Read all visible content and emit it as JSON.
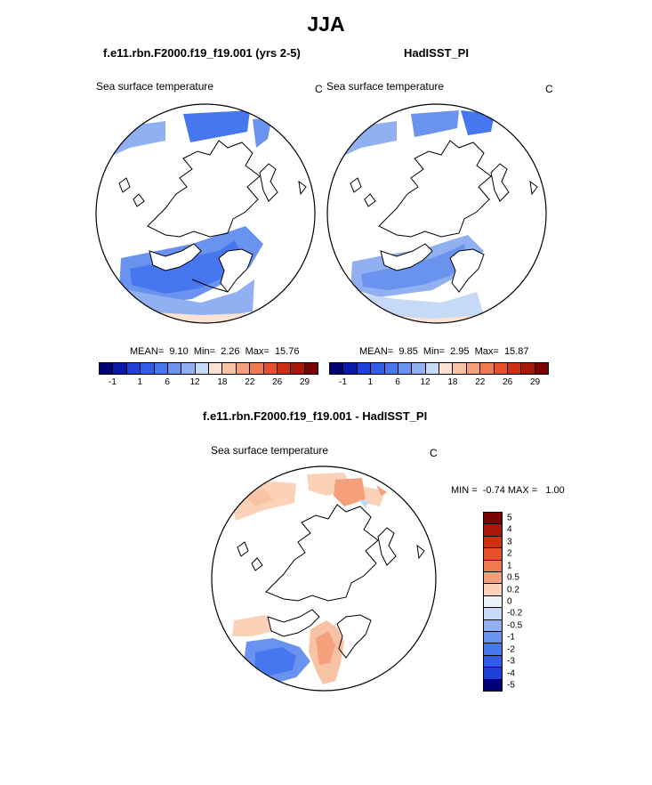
{
  "page": {
    "title": "JJA",
    "left_title": "f.e11.rbn.F2000.f19_f19.001 (yrs 2-5)",
    "right_title": "HadISST_PI",
    "diff_title": "f.e11.rbn.F2000.f19_f19.001 - HadISST_PI"
  },
  "panels": [
    {
      "label": "Sea surface temperature",
      "unit": "C",
      "stats": "MEAN=  9.10  Min=  2.26  Max=  15.76"
    },
    {
      "label": "Sea surface temperature",
      "unit": "C",
      "stats": "MEAN=  9.85  Min=  2.95  Max=  15.87"
    },
    {
      "label": "Sea surface temperature",
      "unit": "C",
      "stats": "MIN =  -0.74 MAX =   1.00"
    }
  ],
  "colorbar_main": {
    "colors": [
      "#000075",
      "#0a1aa8",
      "#1f3fd6",
      "#2f5de8",
      "#4677ee",
      "#6a93f0",
      "#90b0f2",
      "#c6d9f6",
      "#fbe2d2",
      "#f8c3a4",
      "#f5a07a",
      "#f07a50",
      "#e6502a",
      "#cc3010",
      "#a81808",
      "#7a0404"
    ],
    "ticks": [
      "-1",
      "1",
      "6",
      "12",
      "18",
      "22",
      "26",
      "29"
    ]
  },
  "colorbar_diff": {
    "colors": [
      "#7a0404",
      "#a81808",
      "#cc3010",
      "#e6502a",
      "#f07a50",
      "#f5a07a",
      "#fbd2b8",
      "#eaf2fa",
      "#c6d9f6",
      "#90b0f2",
      "#6a93f0",
      "#4677ee",
      "#2f5de8",
      "#1f3fd6",
      "#000075"
    ],
    "ticks": [
      "5",
      "4",
      "3",
      "2",
      "1",
      "0.5",
      "0.2",
      "0",
      "-0.2",
      "-0.5",
      "-1",
      "-2",
      "-3",
      "-4",
      "-5"
    ]
  }
}
